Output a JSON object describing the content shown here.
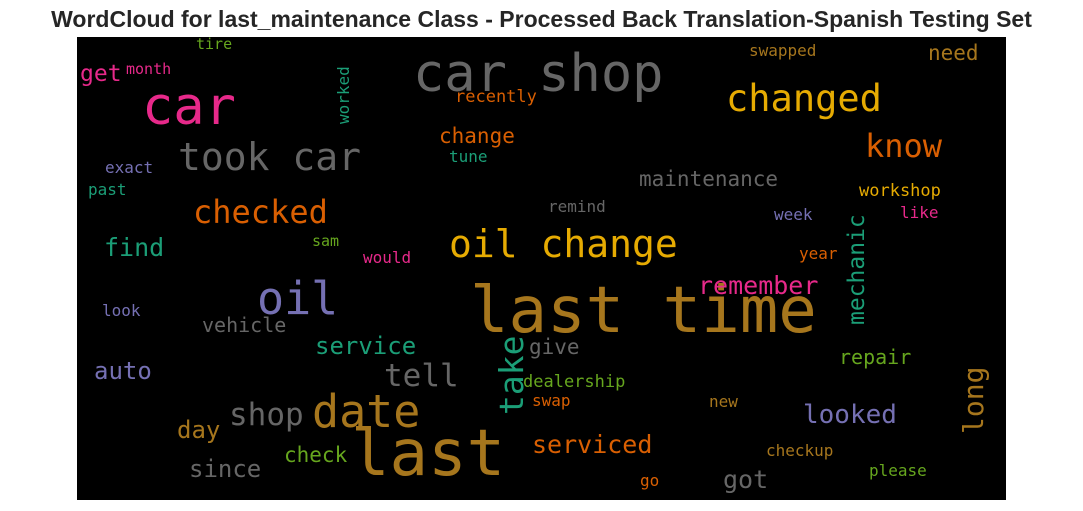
{
  "title": "WordCloud for last_maintenance Class - Processed Back Translation-Spanish Testing Set",
  "chart_data": {
    "type": "wordcloud",
    "background": "#000000",
    "words": [
      {
        "text": "last time",
        "color": "#a6761d"
      },
      {
        "text": "last",
        "color": "#a6761d"
      },
      {
        "text": "car shop",
        "color": "#666666"
      },
      {
        "text": "car",
        "color": "#e7298a"
      },
      {
        "text": "oil change",
        "color": "#e6ab02"
      },
      {
        "text": "date",
        "color": "#a6761d"
      },
      {
        "text": "changed",
        "color": "#e6ab02"
      },
      {
        "text": "took car",
        "color": "#666666"
      },
      {
        "text": "oil",
        "color": "#7570b3"
      },
      {
        "text": "take",
        "color": "#1b9e77"
      },
      {
        "text": "checked",
        "color": "#d95f02"
      },
      {
        "text": "know",
        "color": "#d95f02"
      },
      {
        "text": "mechanic",
        "color": "#1b9e77"
      },
      {
        "text": "long",
        "color": "#a6761d"
      },
      {
        "text": "shop",
        "color": "#666666"
      },
      {
        "text": "tell",
        "color": "#666666"
      },
      {
        "text": "remember",
        "color": "#e7298a"
      },
      {
        "text": "serviced",
        "color": "#d95f02"
      },
      {
        "text": "looked",
        "color": "#7570b3"
      },
      {
        "text": "service",
        "color": "#1b9e77"
      },
      {
        "text": "find",
        "color": "#1b9e77"
      },
      {
        "text": "auto",
        "color": "#7570b3"
      },
      {
        "text": "maintenance",
        "color": "#666666"
      },
      {
        "text": "day",
        "color": "#a6761d"
      },
      {
        "text": "since",
        "color": "#666666"
      },
      {
        "text": "got",
        "color": "#666666"
      },
      {
        "text": "vehicle",
        "color": "#666666"
      },
      {
        "text": "repair",
        "color": "#66a61e"
      },
      {
        "text": "check",
        "color": "#66a61e"
      },
      {
        "text": "change",
        "color": "#d95f02"
      },
      {
        "text": "get",
        "color": "#e7298a"
      },
      {
        "text": "give",
        "color": "#666666"
      },
      {
        "text": "need",
        "color": "#a6761d"
      },
      {
        "text": "worked",
        "color": "#1b9e77"
      },
      {
        "text": "recently",
        "color": "#d95f02"
      },
      {
        "text": "workshop",
        "color": "#e6ab02"
      },
      {
        "text": "dealership",
        "color": "#66a61e"
      },
      {
        "text": "swapped",
        "color": "#a6761d"
      },
      {
        "text": "checkup",
        "color": "#a6761d"
      },
      {
        "text": "please",
        "color": "#66a61e"
      },
      {
        "text": "month",
        "color": "#e7298a"
      },
      {
        "text": "exact",
        "color": "#7570b3"
      },
      {
        "text": "past",
        "color": "#1b9e77"
      },
      {
        "text": "tune",
        "color": "#1b9e77"
      },
      {
        "text": "remind",
        "color": "#666666"
      },
      {
        "text": "week",
        "color": "#7570b3"
      },
      {
        "text": "like",
        "color": "#e7298a"
      },
      {
        "text": "tire",
        "color": "#66a61e"
      },
      {
        "text": "sam",
        "color": "#66a61e"
      },
      {
        "text": "would",
        "color": "#e7298a"
      },
      {
        "text": "year",
        "color": "#d95f02"
      },
      {
        "text": "look",
        "color": "#7570b3"
      },
      {
        "text": "swap",
        "color": "#d95f02"
      },
      {
        "text": "new",
        "color": "#a6761d"
      },
      {
        "text": "go",
        "color": "#d95f02"
      }
    ]
  }
}
